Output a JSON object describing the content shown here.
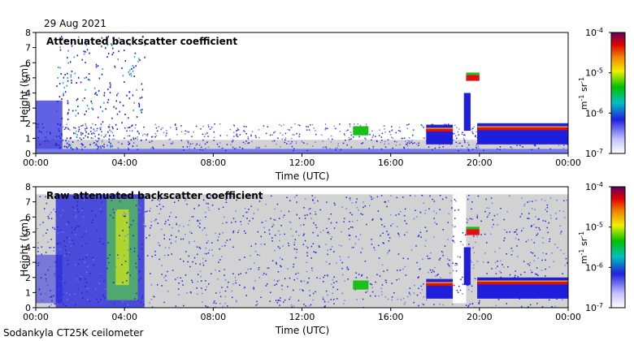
{
  "date": "29 Aug 2021",
  "footer": "Sodankyla CT25K ceilometer",
  "colors": {
    "gray": "#d2d2d2",
    "blue_dark": "#1e1edc",
    "blue_light": "#7878f0",
    "layer_red": "#e01010",
    "layer_orange": "#f0a000",
    "layer_green": "#18c018"
  },
  "chart_data": [
    {
      "type": "heatmap",
      "title": "Attenuated backscatter coefficient",
      "xlabel": "Time (UTC)",
      "ylabel": "Height (km)",
      "xlim": [
        "00:00",
        "00:00"
      ],
      "ylim": [
        0,
        8
      ],
      "xticks": [
        "00:00",
        "04:00",
        "08:00",
        "12:00",
        "16:00",
        "20:00",
        "00:00"
      ],
      "yticks": [
        "0",
        "1",
        "2",
        "3",
        "4",
        "5",
        "6",
        "7",
        "8"
      ],
      "colorbar": {
        "label": "m-1 sr-1",
        "ticks": [
          "10-7",
          "10-6",
          "10-5",
          "10-4"
        ],
        "range": [
          1e-07,
          0.0001
        ],
        "scale": "log"
      }
    },
    {
      "type": "heatmap",
      "title": "Raw attenuated backscatter coefficient",
      "xlabel": "Time (UTC)",
      "ylabel": "Height (km)",
      "xlim": [
        "00:00",
        "00:00"
      ],
      "ylim": [
        0,
        8
      ],
      "xticks": [
        "00:00",
        "04:00",
        "08:00",
        "12:00",
        "16:00",
        "20:00",
        "00:00"
      ],
      "yticks": [
        "0",
        "1",
        "2",
        "3",
        "4",
        "5",
        "6",
        "7",
        "8"
      ],
      "colorbar": {
        "label": "m-1 sr-1",
        "ticks": [
          "10-7",
          "10-6",
          "10-5",
          "10-4"
        ],
        "range": [
          1e-07,
          0.0001
        ],
        "scale": "log"
      }
    }
  ]
}
